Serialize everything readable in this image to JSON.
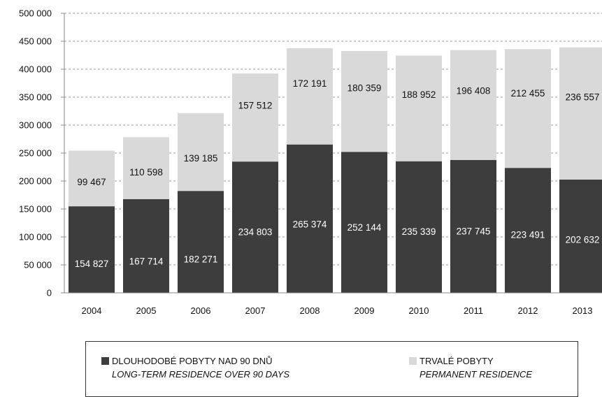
{
  "chart_data": {
    "type": "bar",
    "stacked": true,
    "categories": [
      "2004",
      "2005",
      "2006",
      "2007",
      "2008",
      "2009",
      "2010",
      "2011",
      "2012",
      "2013"
    ],
    "series": [
      {
        "name": "DLOUHODOBÉ POBYTY NAD 90 DNŮ / LONG-TERM RESIDENCE OVER 90 DAYS",
        "values": [
          154827,
          167714,
          182271,
          234803,
          265374,
          252144,
          235339,
          237745,
          223491,
          202632
        ],
        "labels": [
          "154 827",
          "167 714",
          "182 271",
          "234 803",
          "265 374",
          "252 144",
          "235 339",
          "237 745",
          "223 491",
          "202 632"
        ],
        "color": "#3d3d3d"
      },
      {
        "name": "TRVALÉ POBYTY / PERMANENT RESIDENCE",
        "values": [
          99467,
          110598,
          139185,
          157512,
          172191,
          180359,
          188952,
          196408,
          212455,
          236557
        ],
        "labels": [
          "99 467",
          "110 598",
          "139 185",
          "157 512",
          "172 191",
          "180 359",
          "188 952",
          "196 408",
          "212 455",
          "236 557"
        ],
        "color": "#d9d9d9"
      }
    ],
    "ylim": [
      0,
      500000
    ],
    "yticks": [
      0,
      50000,
      100000,
      150000,
      200000,
      250000,
      300000,
      350000,
      400000,
      450000,
      500000
    ],
    "ytick_labels": [
      "0",
      "50 000",
      "100 000",
      "150 000",
      "200 000",
      "250 000",
      "300 000",
      "350 000",
      "400 000",
      "450 000",
      "500 000"
    ],
    "grid": true,
    "legend_position": "bottom"
  },
  "legend": {
    "items": [
      {
        "line1": "DLOUHODOBÉ POBYTY NAD 90 DNŮ",
        "line2": "LONG-TERM RESIDENCE OVER 90 DAYS",
        "color": "#3d3d3d"
      },
      {
        "line1": "TRVALÉ POBYTY",
        "line2": "PERMANENT RESIDENCE",
        "color": "#d9d9d9"
      }
    ]
  }
}
